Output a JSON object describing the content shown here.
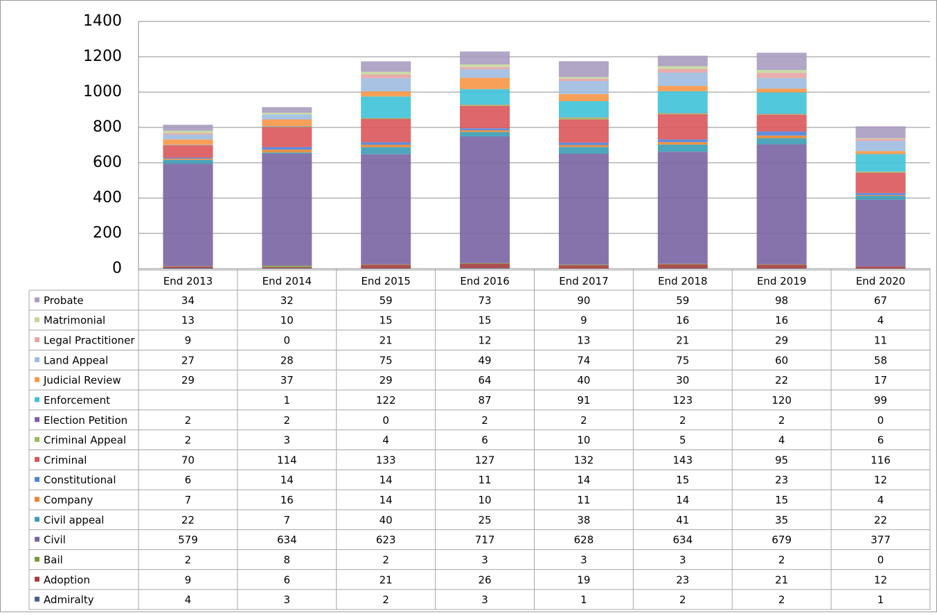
{
  "chart_data": {
    "type": "stacked_bar",
    "categories": [
      "End 2013",
      "End 2014",
      "End 2015",
      "End 2016",
      "End 2017",
      "End 2018",
      "End 2019",
      "End 2020"
    ],
    "ylim": [
      0,
      1400
    ],
    "yticks": [
      0,
      200,
      400,
      600,
      800,
      1000,
      1200,
      1400
    ],
    "grid": true,
    "series": [
      {
        "name": "Probate",
        "color": "#a99cbf",
        "values": [
          34,
          32,
          59,
          73,
          90,
          59,
          98,
          67
        ]
      },
      {
        "name": "Matrimonial",
        "color": "#c4d79b",
        "values": [
          13,
          10,
          15,
          15,
          9,
          16,
          16,
          4
        ]
      },
      {
        "name": "Legal Practitioner",
        "color": "#e6a3a2",
        "values": [
          9,
          0,
          21,
          12,
          13,
          21,
          29,
          11
        ]
      },
      {
        "name": "Land Appeal",
        "color": "#9fbbe0",
        "values": [
          27,
          28,
          75,
          49,
          74,
          75,
          60,
          58
        ]
      },
      {
        "name": "Judicial Review",
        "color": "#f79646",
        "values": [
          29,
          37,
          29,
          64,
          40,
          30,
          22,
          17
        ]
      },
      {
        "name": "Enforcement",
        "color": "#3fc2d8",
        "values": [
          null,
          1,
          122,
          87,
          91,
          123,
          120,
          99
        ]
      },
      {
        "name": "Election Petition",
        "color": "#7b5ea6",
        "values": [
          2,
          2,
          0,
          2,
          2,
          2,
          2,
          0
        ]
      },
      {
        "name": "Criminal Appeal",
        "color": "#9bbb59",
        "values": [
          2,
          3,
          4,
          6,
          10,
          5,
          4,
          6
        ]
      },
      {
        "name": "Criminal",
        "color": "#d9575a",
        "values": [
          70,
          114,
          133,
          127,
          132,
          143,
          95,
          116
        ]
      },
      {
        "name": "Constitutional",
        "color": "#4f81d8",
        "values": [
          6,
          14,
          14,
          11,
          14,
          15,
          23,
          12
        ]
      },
      {
        "name": "Company",
        "color": "#e8862f",
        "values": [
          7,
          16,
          14,
          10,
          11,
          14,
          15,
          4
        ]
      },
      {
        "name": "Civil appeal",
        "color": "#3a9cb5",
        "values": [
          22,
          7,
          40,
          25,
          38,
          41,
          35,
          22
        ]
      },
      {
        "name": "Civil",
        "color": "#7a64a3",
        "values": [
          579,
          634,
          623,
          717,
          628,
          634,
          679,
          377
        ]
      },
      {
        "name": "Bail",
        "color": "#7c9a3c",
        "values": [
          2,
          8,
          2,
          3,
          3,
          3,
          2,
          0
        ]
      },
      {
        "name": "Adoption",
        "color": "#a33d3b",
        "values": [
          9,
          6,
          21,
          26,
          19,
          23,
          21,
          12
        ]
      },
      {
        "name": "Admiralty",
        "color": "#4a5c8c",
        "values": [
          4,
          3,
          2,
          3,
          1,
          2,
          2,
          1
        ]
      }
    ]
  }
}
